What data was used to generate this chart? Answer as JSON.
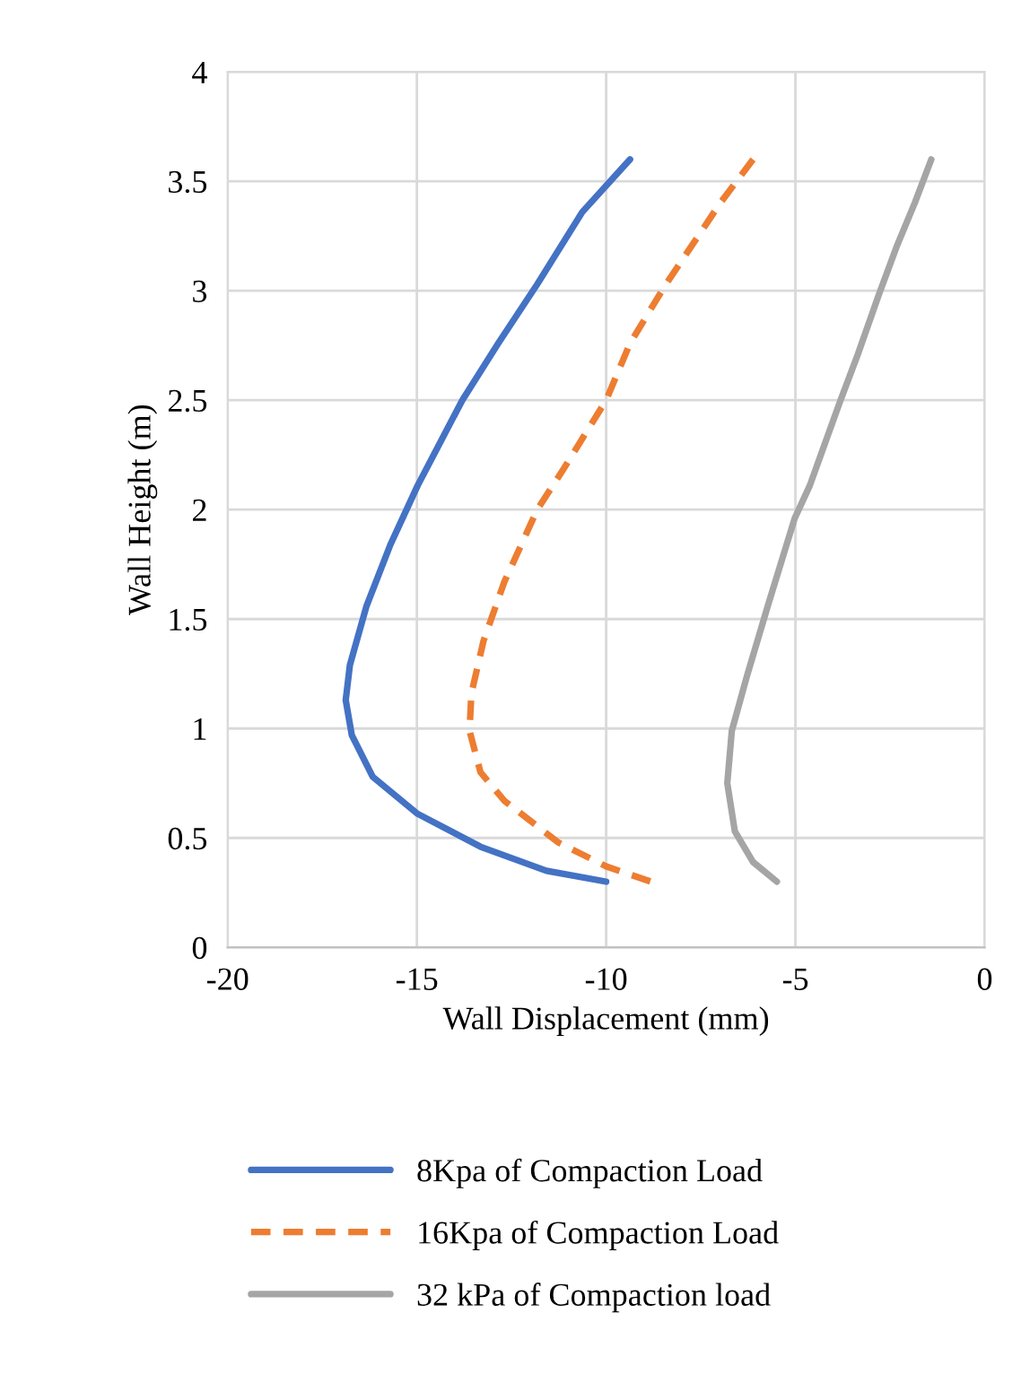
{
  "chart_data": {
    "type": "line",
    "xlabel": "Wall Displacement (mm)",
    "ylabel": "Wall Height (m)",
    "xlim": [
      -20,
      0
    ],
    "xticks": [
      -20,
      -15,
      -10,
      -5,
      0
    ],
    "ylim": [
      0,
      4
    ],
    "yticks": [
      0,
      0.5,
      1,
      1.5,
      2,
      2.5,
      3,
      3.5,
      4
    ],
    "grid": true,
    "legend": "bottom",
    "marker": "none",
    "series": [
      {
        "name": "8Kpa of Compaction Load",
        "color": "#4472c4",
        "line_style": "solid",
        "x": [
          -9.37,
          -10.63,
          -11.82,
          -12.85,
          -13.8,
          -14.98,
          -15.7,
          -16.33,
          -16.77,
          -16.88,
          -16.72,
          -16.17,
          -14.98,
          -13.32,
          -11.58,
          -10.0
        ],
        "values": [
          3.6,
          3.36,
          3.03,
          2.76,
          2.5,
          2.11,
          1.84,
          1.56,
          1.29,
          1.13,
          0.97,
          0.78,
          0.61,
          0.46,
          0.35,
          0.3
        ]
      },
      {
        "name": "16Kpa of Compaction Load",
        "color": "#ed7d31",
        "line_style": "dashed",
        "x": [
          -6.12,
          -6.99,
          -8.42,
          -9.37,
          -10.0,
          -11.11,
          -11.82,
          -12.69,
          -13.24,
          -13.56,
          -13.61,
          -13.32,
          -12.69,
          -11.27,
          -10.0,
          -8.81
        ],
        "values": [
          3.6,
          3.4,
          3.03,
          2.76,
          2.5,
          2.19,
          2.0,
          1.67,
          1.4,
          1.16,
          0.99,
          0.8,
          0.67,
          0.48,
          0.37,
          0.3
        ]
      },
      {
        "name": "32 kPa of Compaction load",
        "color": "#a5a5a5",
        "line_style": "solid",
        "x": [
          -1.41,
          -1.85,
          -2.33,
          -2.8,
          -3.35,
          -3.83,
          -4.62,
          -5.02,
          -5.73,
          -6.28,
          -6.68,
          -6.8,
          -6.6,
          -6.12,
          -5.49
        ],
        "values": [
          3.6,
          3.4,
          3.2,
          2.98,
          2.71,
          2.49,
          2.11,
          1.96,
          1.56,
          1.24,
          0.99,
          0.75,
          0.53,
          0.39,
          0.3
        ]
      }
    ]
  }
}
